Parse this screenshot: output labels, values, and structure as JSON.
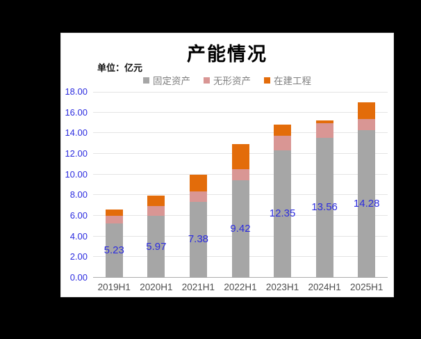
{
  "page": {
    "background": "#000000"
  },
  "panel": {
    "background": "#FFFFFF",
    "border": "#E3E3E3"
  },
  "header": {
    "title": "产能情况",
    "unit_label": "单位：亿元"
  },
  "chart_data": {
    "type": "bar",
    "stacked": true,
    "title": "产能情况",
    "unit": "亿元",
    "categories": [
      "2019H1",
      "2020H1",
      "2021H1",
      "2022H1",
      "2023H1",
      "2024H1",
      "2025H1"
    ],
    "series": [
      {
        "name": "固定资产",
        "color": "#A6A6A6",
        "values": [
          5.23,
          5.97,
          7.38,
          9.42,
          12.35,
          13.56,
          14.28
        ]
      },
      {
        "name": "无形资产",
        "color": "#D99694",
        "values": [
          0.8,
          1.0,
          1.0,
          1.1,
          1.4,
          1.4,
          1.1
        ]
      },
      {
        "name": "在建工程",
        "color": "#E36C0A",
        "values": [
          0.6,
          1.0,
          1.6,
          2.4,
          1.1,
          0.3,
          1.6
        ]
      }
    ],
    "totals_estimated": [
      6.63,
      7.97,
      9.98,
      12.92,
      14.85,
      15.26,
      16.98
    ],
    "data_labels": {
      "series": "固定资产",
      "values": [
        "5.23",
        "5.97",
        "7.38",
        "9.42",
        "12.35",
        "13.56",
        "14.28"
      ],
      "color": "#2B2BDF",
      "position": "center-of-first-segment"
    },
    "y_axis": {
      "min": 0,
      "max": 18,
      "step": 2,
      "tick_labels": [
        "0.00",
        "2.00",
        "4.00",
        "6.00",
        "8.00",
        "10.00",
        "12.00",
        "14.00",
        "16.00",
        "18.00"
      ],
      "label_color": "#2B2BDF"
    },
    "x_axis": {
      "label_color": "#4D4D4D"
    },
    "grid": {
      "show": true,
      "color": "#E4E4E4",
      "baseline_color": "#ADADAD"
    },
    "legend": {
      "position": "top-center",
      "text_color": "#7F7F7F"
    }
  }
}
